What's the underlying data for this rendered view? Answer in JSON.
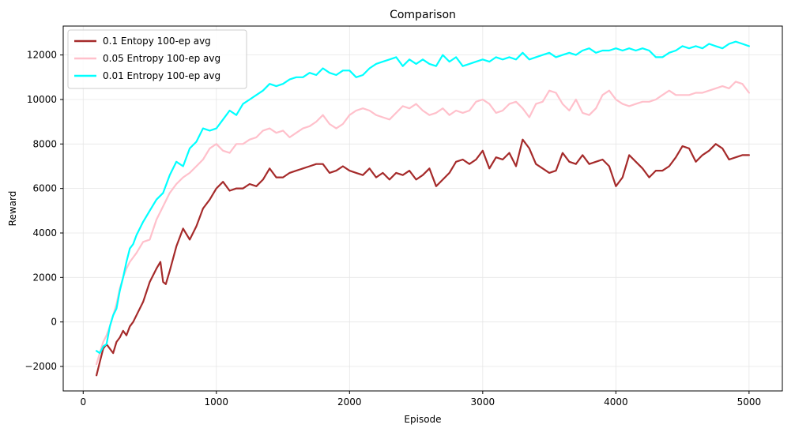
{
  "chart_data": {
    "type": "line",
    "title": "Comparison",
    "xlabel": "Episode",
    "ylabel": "Reward",
    "xlim": [
      -150,
      5250
    ],
    "ylim": [
      -3100,
      13300
    ],
    "xticks": [
      0,
      1000,
      2000,
      3000,
      4000,
      5000
    ],
    "yticks": [
      -2000,
      0,
      2000,
      4000,
      6000,
      8000,
      10000,
      12000
    ],
    "grid": true,
    "legend_position": "top-left",
    "series": [
      {
        "name": "0.1 Entopy 100-ep avg",
        "color": "#a52a2a",
        "x": [
          100,
          125,
          150,
          175,
          200,
          225,
          250,
          275,
          300,
          325,
          350,
          375,
          400,
          450,
          500,
          550,
          580,
          600,
          620,
          650,
          700,
          750,
          800,
          850,
          900,
          950,
          1000,
          1050,
          1100,
          1150,
          1200,
          1250,
          1300,
          1350,
          1400,
          1450,
          1500,
          1550,
          1600,
          1650,
          1700,
          1750,
          1800,
          1850,
          1900,
          1950,
          2000,
          2050,
          2100,
          2150,
          2200,
          2250,
          2300,
          2350,
          2400,
          2450,
          2500,
          2550,
          2600,
          2650,
          2700,
          2750,
          2800,
          2850,
          2900,
          2950,
          3000,
          3050,
          3100,
          3150,
          3200,
          3250,
          3300,
          3350,
          3400,
          3450,
          3500,
          3550,
          3600,
          3650,
          3700,
          3750,
          3800,
          3850,
          3900,
          3950,
          4000,
          4050,
          4100,
          4150,
          4200,
          4250,
          4300,
          4350,
          4400,
          4450,
          4500,
          4550,
          4600,
          4650,
          4700,
          4750,
          4800,
          4850,
          4900,
          4950,
          5000
        ],
        "y": [
          -2400,
          -1800,
          -1200,
          -1000,
          -1200,
          -1400,
          -900,
          -700,
          -400,
          -600,
          -200,
          0,
          300,
          900,
          1800,
          2400,
          2700,
          1800,
          1700,
          2300,
          3400,
          4200,
          3700,
          4300,
          5100,
          5500,
          6000,
          6300,
          5900,
          6000,
          6000,
          6200,
          6100,
          6400,
          6900,
          6500,
          6500,
          6700,
          6800,
          6900,
          7000,
          7100,
          7100,
          6700,
          6800,
          7000,
          6800,
          6700,
          6600,
          6900,
          6500,
          6700,
          6400,
          6700,
          6600,
          6800,
          6400,
          6600,
          6900,
          6100,
          6400,
          6700,
          7200,
          7300,
          7100,
          7300,
          7700,
          6900,
          7400,
          7300,
          7600,
          7000,
          8200,
          7800,
          7100,
          6900,
          6700,
          6800,
          7600,
          7200,
          7100,
          7500,
          7100,
          7200,
          7300,
          7000,
          6100,
          6500,
          7500,
          7200,
          6900,
          6500,
          6800,
          6800,
          7000,
          7400,
          7900,
          7800,
          7200,
          7500,
          7700,
          8000,
          7800,
          7300,
          7400,
          7500,
          7500
        ]
      },
      {
        "name": "0.05 Entropy 100-ep avg",
        "color": "#ffc0cb",
        "x": [
          100,
          125,
          150,
          175,
          200,
          225,
          250,
          275,
          300,
          325,
          350,
          375,
          400,
          450,
          500,
          550,
          600,
          650,
          700,
          750,
          800,
          850,
          900,
          950,
          1000,
          1050,
          1100,
          1150,
          1200,
          1250,
          1300,
          1350,
          1400,
          1450,
          1500,
          1550,
          1600,
          1650,
          1700,
          1750,
          1800,
          1850,
          1900,
          1950,
          2000,
          2050,
          2100,
          2150,
          2200,
          2250,
          2300,
          2350,
          2400,
          2450,
          2500,
          2550,
          2600,
          2650,
          2700,
          2750,
          2800,
          2850,
          2900,
          2950,
          3000,
          3050,
          3100,
          3150,
          3200,
          3250,
          3300,
          3350,
          3400,
          3450,
          3500,
          3550,
          3600,
          3650,
          3700,
          3750,
          3800,
          3850,
          3900,
          3950,
          4000,
          4050,
          4100,
          4150,
          4200,
          4250,
          4300,
          4350,
          4400,
          4450,
          4500,
          4550,
          4600,
          4650,
          4700,
          4750,
          4800,
          4850,
          4900,
          4950,
          5000
        ],
        "y": [
          -1900,
          -1400,
          -900,
          -600,
          -200,
          300,
          800,
          1500,
          2000,
          2400,
          2700,
          2900,
          3100,
          3600,
          3700,
          4600,
          5200,
          5800,
          6200,
          6500,
          6700,
          7000,
          7300,
          7800,
          8000,
          7700,
          7600,
          8000,
          8000,
          8200,
          8300,
          8600,
          8700,
          8500,
          8600,
          8300,
          8500,
          8700,
          8800,
          9000,
          9300,
          8900,
          8700,
          8900,
          9300,
          9500,
          9600,
          9500,
          9300,
          9200,
          9100,
          9400,
          9700,
          9600,
          9800,
          9500,
          9300,
          9400,
          9600,
          9300,
          9500,
          9400,
          9500,
          9900,
          10000,
          9800,
          9400,
          9500,
          9800,
          9900,
          9600,
          9200,
          9800,
          9900,
          10400,
          10300,
          9800,
          9500,
          10000,
          9400,
          9300,
          9600,
          10200,
          10400,
          10000,
          9800,
          9700,
          9800,
          9900,
          9900,
          10000,
          10200,
          10400,
          10200,
          10200,
          10200,
          10300,
          10300,
          10400,
          10500,
          10600,
          10500,
          10800,
          10700,
          10300
        ]
      },
      {
        "name": "0.01 Entropy 100-ep avg",
        "color": "#00ffff",
        "x": [
          100,
          125,
          150,
          175,
          200,
          225,
          250,
          275,
          300,
          325,
          350,
          375,
          400,
          450,
          500,
          550,
          600,
          650,
          700,
          750,
          800,
          850,
          900,
          950,
          1000,
          1050,
          1100,
          1150,
          1200,
          1250,
          1300,
          1350,
          1400,
          1450,
          1500,
          1550,
          1600,
          1650,
          1700,
          1750,
          1800,
          1850,
          1900,
          1950,
          2000,
          2050,
          2100,
          2150,
          2200,
          2250,
          2300,
          2350,
          2400,
          2450,
          2500,
          2550,
          2600,
          2650,
          2700,
          2750,
          2800,
          2850,
          2900,
          2950,
          3000,
          3050,
          3100,
          3150,
          3200,
          3250,
          3300,
          3350,
          3400,
          3450,
          3500,
          3550,
          3600,
          3650,
          3700,
          3750,
          3800,
          3850,
          3900,
          3950,
          4000,
          4050,
          4100,
          4150,
          4200,
          4250,
          4300,
          4350,
          4400,
          4450,
          4500,
          4550,
          4600,
          4650,
          4700,
          4750,
          4800,
          4850,
          4900,
          4950,
          5000
        ],
        "y": [
          -1300,
          -1400,
          -1100,
          -1000,
          -200,
          300,
          600,
          1400,
          2000,
          2700,
          3300,
          3500,
          3900,
          4500,
          5000,
          5500,
          5800,
          6600,
          7200,
          7000,
          7800,
          8100,
          8700,
          8600,
          8700,
          9100,
          9500,
          9300,
          9800,
          10000,
          10200,
          10400,
          10700,
          10600,
          10700,
          10900,
          11000,
          11000,
          11200,
          11100,
          11400,
          11200,
          11100,
          11300,
          11300,
          11000,
          11100,
          11400,
          11600,
          11700,
          11800,
          11900,
          11500,
          11800,
          11600,
          11800,
          11600,
          11500,
          12000,
          11700,
          11900,
          11500,
          11600,
          11700,
          11800,
          11700,
          11900,
          11800,
          11900,
          11800,
          12100,
          11800,
          11900,
          12000,
          12100,
          11900,
          12000,
          12100,
          12000,
          12200,
          12300,
          12100,
          12200,
          12200,
          12300,
          12200,
          12300,
          12200,
          12300,
          12200,
          11900,
          11900,
          12100,
          12200,
          12400,
          12300,
          12400,
          12300,
          12500,
          12400,
          12300,
          12500,
          12600,
          12500,
          12400
        ]
      }
    ]
  }
}
